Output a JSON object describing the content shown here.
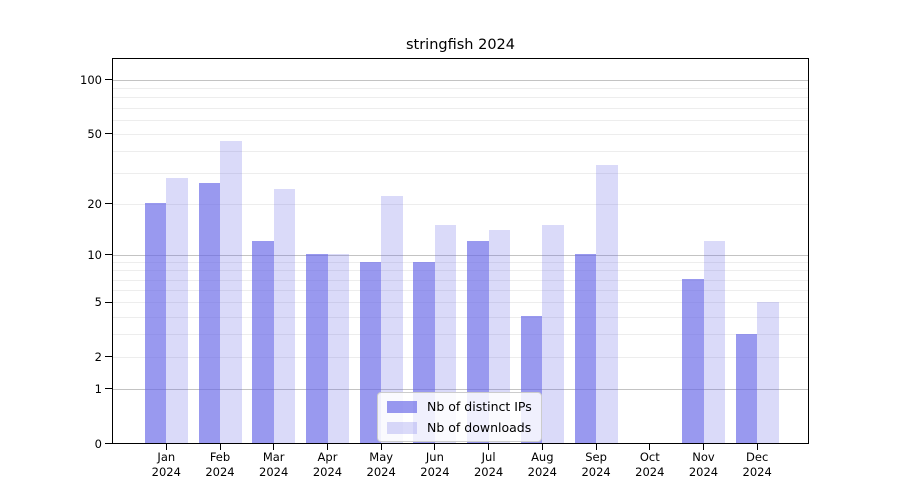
{
  "title": "stringfish 2024",
  "chart_data": {
    "type": "bar",
    "title": "stringfish 2024",
    "categories": [
      "Jan",
      "Feb",
      "Mar",
      "Apr",
      "May",
      "Jun",
      "Jul",
      "Aug",
      "Sep",
      "Oct",
      "Nov",
      "Dec"
    ],
    "x_year_line": "2024",
    "series": [
      {
        "name": "Nb of distinct IPs",
        "color": "rgba(100,100,230,0.66)",
        "color_hex": "#9999ee",
        "values": [
          20,
          26,
          12,
          10,
          9,
          9,
          12,
          4,
          10,
          0,
          7,
          3
        ]
      },
      {
        "name": "Nb of downloads",
        "color": "rgba(100,100,230,0.24)",
        "color_hex": "#dadaf8",
        "values": [
          28,
          45,
          24,
          10,
          22,
          15,
          14,
          15,
          33,
          0,
          12,
          5
        ]
      }
    ],
    "y_ticks": [
      100,
      50,
      20,
      10,
      5,
      2,
      1,
      0
    ],
    "ylim": [
      0,
      130
    ],
    "yscale": "log1p",
    "grid": {
      "on": true,
      "major": [
        1,
        10,
        100
      ],
      "minor": [
        2,
        3,
        4,
        5,
        6,
        7,
        8,
        9,
        20,
        30,
        40,
        50,
        60,
        70,
        80,
        90
      ],
      "major_color": "#c3c3c3",
      "minor_color": "#ededed"
    },
    "legend_position": "lower center"
  }
}
